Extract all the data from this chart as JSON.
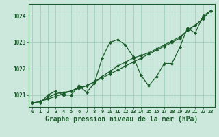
{
  "background_color": "#cce8dc",
  "grid_color": "#99ccb8",
  "line_color": "#1a5c2a",
  "marker_color": "#1a5c2a",
  "xlabel": "Graphe pression niveau de la mer (hPa)",
  "xlabel_fontsize": 7,
  "xlim": [
    -0.5,
    23.5
  ],
  "ylim": [
    1020.55,
    1024.45
  ],
  "yticks": [
    1021,
    1022,
    1023,
    1024
  ],
  "xticks": [
    0,
    1,
    2,
    3,
    4,
    5,
    6,
    7,
    8,
    9,
    10,
    11,
    12,
    13,
    14,
    15,
    16,
    17,
    18,
    19,
    20,
    21,
    22,
    23
  ],
  "series_wiggly": [
    1020.7,
    1020.7,
    1021.0,
    1021.15,
    1021.0,
    1021.0,
    1021.35,
    1021.1,
    1021.45,
    1022.4,
    1023.0,
    1023.1,
    1022.9,
    1022.45,
    1021.75,
    1021.35,
    1021.7,
    1022.2,
    1022.2,
    1022.8,
    1023.55,
    1023.35,
    1024.0,
    1024.2
  ],
  "series_trend1": [
    1020.7,
    1020.75,
    1020.85,
    1020.95,
    1021.05,
    1021.15,
    1021.25,
    1021.35,
    1021.5,
    1021.65,
    1021.8,
    1021.95,
    1022.1,
    1022.25,
    1022.4,
    1022.55,
    1022.7,
    1022.85,
    1023.0,
    1023.15,
    1023.45,
    1023.65,
    1023.9,
    1024.2
  ],
  "series_trend2": [
    1020.7,
    1020.75,
    1020.9,
    1021.05,
    1021.1,
    1021.15,
    1021.3,
    1021.35,
    1021.5,
    1021.7,
    1021.9,
    1022.1,
    1022.25,
    1022.4,
    1022.5,
    1022.6,
    1022.75,
    1022.9,
    1023.05,
    1023.2,
    1023.45,
    1023.65,
    1023.9,
    1024.2
  ]
}
